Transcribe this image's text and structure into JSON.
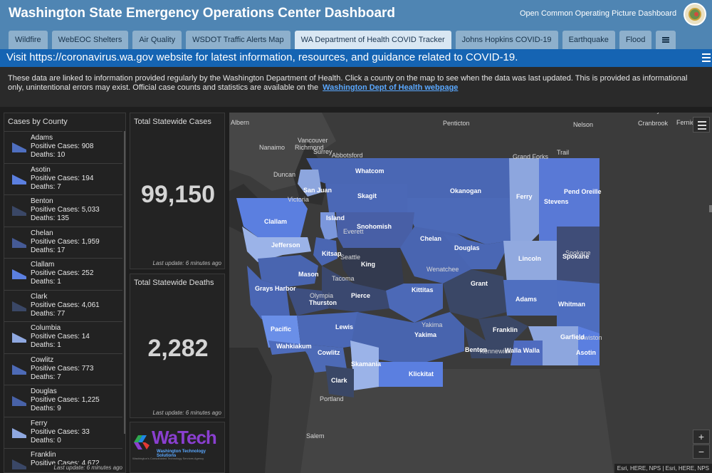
{
  "header": {
    "title": "Washington State Emergency Operations Center Dashboard",
    "subtitle": "Open Common Operating Picture Dashboard",
    "tabs": [
      {
        "label": "Wildfire"
      },
      {
        "label": "WebEOC Shelters"
      },
      {
        "label": "Air Quality"
      },
      {
        "label": "WSDOT Traffic Alerts Map"
      },
      {
        "label": "WA Department of Health COVID Tracker"
      },
      {
        "label": "Johns Hopkins COVID-19"
      },
      {
        "label": "Earthquake"
      },
      {
        "label": "Flood"
      }
    ],
    "active_tab": "WA Department of Health COVID Tracker",
    "list_icon": "list-icon"
  },
  "announcement": {
    "text": "Visit https://coronavirus.wa.gov website for latest information, resources, and guidance related to COVID-19.",
    "menu_icon": "hamburger-icon"
  },
  "info": {
    "text": "These data are linked to information provided regularly by the Washington Department of Health.  Click a county on the map to see when the data was last updated.  This is provided as informational only, unintentional errors may exist.  Official case counts and statistics are available on the",
    "link_text": "Washington Dept of Health webpage"
  },
  "county_panel": {
    "title": "Cases by County",
    "footer": "Last update: 6 minutes ago",
    "counties": [
      {
        "name": "Adams",
        "cases": "Positive Cases:  908",
        "deaths": "Deaths:  10",
        "color": "#4f6fc0"
      },
      {
        "name": "Asotin",
        "cases": "Positive Cases:  194",
        "deaths": "Deaths:  7",
        "color": "#5b7fe0"
      },
      {
        "name": "Benton",
        "cases": "Positive Cases:  5,033",
        "deaths": "Deaths:  135",
        "color": "#3a4766"
      },
      {
        "name": "Chelan",
        "cases": "Positive Cases:  1,959",
        "deaths": "Deaths:  17",
        "color": "#455a96"
      },
      {
        "name": "Clallam",
        "cases": "Positive Cases:  252",
        "deaths": "Deaths:  1",
        "color": "#5b7fe0"
      },
      {
        "name": "Clark",
        "cases": "Positive Cases:  4,061",
        "deaths": "Deaths:  77",
        "color": "#3a4766"
      },
      {
        "name": "Columbia",
        "cases": "Positive Cases:  14",
        "deaths": "Deaths:  1",
        "color": "#8fa8e0"
      },
      {
        "name": "Cowlitz",
        "cases": "Positive Cases:  773",
        "deaths": "Deaths:  7",
        "color": "#4d6ab6"
      },
      {
        "name": "Douglas",
        "cases": "Positive Cases:  1,225",
        "deaths": "Deaths:  9",
        "color": "#4862a8"
      },
      {
        "name": "Ferry",
        "cases": "Positive Cases:  33",
        "deaths": "Deaths:  0",
        "color": "#8fa8e0"
      },
      {
        "name": "Franklin",
        "cases": "Positive Cases:  4,672",
        "deaths": "",
        "color": "#3a4766"
      }
    ]
  },
  "stats": {
    "cases_title": "Total Statewide Cases",
    "cases_value": "99,150",
    "cases_updated": "Last update: 6 minutes ago",
    "deaths_title": "Total Statewide Deaths",
    "deaths_value": "2,282",
    "deaths_updated": "Last update: 6 minutes ago"
  },
  "logo": {
    "name": "WaTech",
    "subtitle": "Washington Technology Solutions",
    "tagline": "Washington's Consolidated Technology Services Agency"
  },
  "map": {
    "attribution": "Esri, HERE, NPS | Esri, HERE, NPS",
    "zoom_in": "+",
    "zoom_out": "−",
    "county_labels": [
      "Whatcom",
      "Okanogan",
      "Ferry",
      "Pend Oreille",
      "Stevens",
      "San Juan",
      "Skagit",
      "Island",
      "Snohomish",
      "Clallam",
      "Jefferson",
      "Kitsap",
      "Chelan",
      "Douglas",
      "Lincoln",
      "Spokane",
      "King",
      "Mason",
      "Grays Harbor",
      "Thurston",
      "Pierce",
      "Kittitas",
      "Grant",
      "Adams",
      "Whitman",
      "Pacific",
      "Lewis",
      "Yakima",
      "Franklin",
      "Garfield",
      "Wahkiakum",
      "Cowlitz",
      "Benton",
      "Walla Walla",
      "Asotin",
      "Skamania",
      "Klickitat",
      "Clark"
    ],
    "city_labels": [
      "Penticton",
      "Nelson",
      "Cranbrook",
      "Fernie",
      "Albern",
      "Nanaimo",
      "Vancouver",
      "Richmond",
      "Surrey",
      "Abbotsford",
      "Grand Forks",
      "Trail",
      "Duncan",
      "Victoria",
      "Everett",
      "Seattle",
      "Tacoma",
      "Olympia",
      "Wenatchee",
      "Spokane",
      "Yakima",
      "Kennewick",
      "Lewiston",
      "Portland",
      "Salem",
      "Kimberley"
    ]
  }
}
